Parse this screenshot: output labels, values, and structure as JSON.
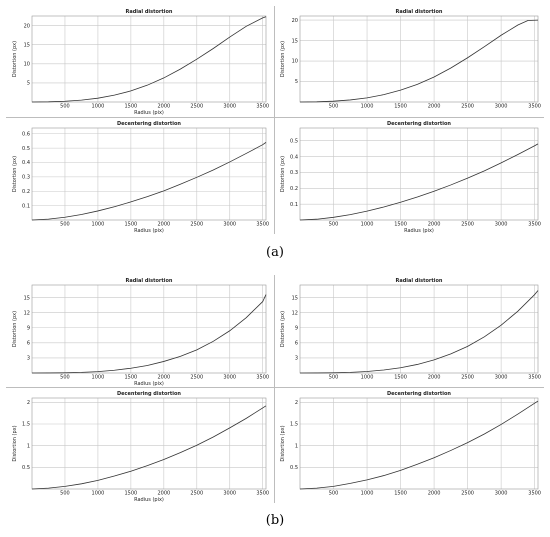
{
  "labels": {
    "a": "(a)",
    "b": "(b)"
  },
  "chart_data": [
    {
      "id": "a-radial-left",
      "type": "line",
      "title": "Radial distortion",
      "xlabel": "Radius (pix)",
      "ylabel": "Distortion (px)",
      "xlim": [
        0,
        3550
      ],
      "ylim": [
        0,
        22.5
      ],
      "xticks": [
        500,
        1000,
        1500,
        2000,
        2500,
        3000,
        3500
      ],
      "yticks": [
        5,
        10,
        15,
        20
      ],
      "grid": true,
      "series": [
        {
          "x": [
            0,
            250,
            500,
            750,
            1000,
            1250,
            1500,
            1750,
            2000,
            2250,
            2500,
            2750,
            3000,
            3250,
            3500,
            3550
          ],
          "y": [
            0,
            0.05,
            0.2,
            0.5,
            1.0,
            1.8,
            2.9,
            4.4,
            6.3,
            8.6,
            11.2,
            14.0,
            17.0,
            19.8,
            22.0,
            22.3
          ]
        }
      ]
    },
    {
      "id": "a-radial-right",
      "type": "line",
      "title": "Radial distortion",
      "xlabel": "",
      "ylabel": "Distortion (px)",
      "xlim": [
        0,
        3550
      ],
      "ylim": [
        0,
        21
      ],
      "xticks": [
        500,
        1000,
        1500,
        2000,
        2500,
        3000,
        3500
      ],
      "yticks": [
        5,
        10,
        15,
        20
      ],
      "grid": true,
      "series": [
        {
          "x": [
            0,
            250,
            500,
            750,
            1000,
            1250,
            1500,
            1750,
            2000,
            2250,
            2500,
            2750,
            3000,
            3250,
            3400,
            3550
          ],
          "y": [
            0,
            0.05,
            0.2,
            0.5,
            1.0,
            1.8,
            2.9,
            4.3,
            6.1,
            8.3,
            10.8,
            13.5,
            16.3,
            18.8,
            19.9,
            20.0
          ]
        }
      ]
    },
    {
      "id": "a-decentering-left",
      "type": "line",
      "title": "Decentering distortion",
      "xlabel": "Radius (pix)",
      "ylabel": "Distortion (px)",
      "xlim": [
        0,
        3550
      ],
      "ylim": [
        0,
        0.64
      ],
      "xticks": [
        500,
        1000,
        1500,
        2000,
        2500,
        3000,
        3500
      ],
      "yticks": [
        0.1,
        0.2,
        0.3,
        0.4,
        0.5,
        0.6
      ],
      "grid": true,
      "series": [
        {
          "x": [
            0,
            250,
            500,
            750,
            1000,
            1250,
            1500,
            1750,
            2000,
            2250,
            2500,
            2750,
            3000,
            3250,
            3500,
            3550
          ],
          "y": [
            0,
            0.006,
            0.019,
            0.038,
            0.063,
            0.092,
            0.126,
            0.163,
            0.203,
            0.249,
            0.297,
            0.348,
            0.404,
            0.463,
            0.524,
            0.54
          ]
        }
      ]
    },
    {
      "id": "a-decentering-right",
      "type": "line",
      "title": "Decentering distortion",
      "xlabel": "Radius (pix)",
      "ylabel": "Distortion (px)",
      "xlim": [
        0,
        3550
      ],
      "ylim": [
        0,
        0.58
      ],
      "xticks": [
        500,
        1000,
        1500,
        2000,
        2500,
        3000,
        3500
      ],
      "yticks": [
        0.1,
        0.2,
        0.3,
        0.4,
        0.5
      ],
      "grid": true,
      "series": [
        {
          "x": [
            0,
            250,
            500,
            750,
            1000,
            1250,
            1500,
            1750,
            2000,
            2250,
            2500,
            2750,
            3000,
            3250,
            3500,
            3550
          ],
          "y": [
            0,
            0.005,
            0.017,
            0.034,
            0.056,
            0.082,
            0.112,
            0.145,
            0.181,
            0.221,
            0.264,
            0.31,
            0.36,
            0.413,
            0.468,
            0.48
          ]
        }
      ]
    },
    {
      "id": "b-radial-left",
      "type": "line",
      "title": "Radial distortion",
      "xlabel": "Radius (pix)",
      "ylabel": "Distortion (px)",
      "xlim": [
        0,
        3550
      ],
      "ylim": [
        0,
        17.5
      ],
      "xticks": [
        500,
        1000,
        1500,
        2000,
        2500,
        3000,
        3500
      ],
      "yticks": [
        3,
        6,
        9,
        12,
        15
      ],
      "grid": true,
      "series": [
        {
          "x": [
            0,
            250,
            500,
            750,
            1000,
            1250,
            1500,
            1750,
            2000,
            2250,
            2500,
            2750,
            3000,
            3250,
            3500,
            3550
          ],
          "y": [
            0,
            0.01,
            0.04,
            0.12,
            0.28,
            0.55,
            0.95,
            1.5,
            2.3,
            3.3,
            4.6,
            6.3,
            8.4,
            11.0,
            14.2,
            15.6
          ]
        }
      ]
    },
    {
      "id": "b-radial-right",
      "type": "line",
      "title": "Radial distortion",
      "xlabel": "",
      "ylabel": "Distortion (px)",
      "xlim": [
        0,
        3550
      ],
      "ylim": [
        0,
        17.5
      ],
      "xticks": [
        500,
        1000,
        1500,
        2000,
        2500,
        3000,
        3500
      ],
      "yticks": [
        3,
        6,
        9,
        12,
        15
      ],
      "grid": true,
      "series": [
        {
          "x": [
            0,
            250,
            500,
            750,
            1000,
            1250,
            1500,
            1750,
            2000,
            2250,
            2500,
            2750,
            3000,
            3250,
            3500,
            3550
          ],
          "y": [
            0,
            0.01,
            0.04,
            0.12,
            0.3,
            0.6,
            1.05,
            1.7,
            2.6,
            3.8,
            5.3,
            7.2,
            9.5,
            12.3,
            15.6,
            16.4
          ]
        }
      ]
    },
    {
      "id": "b-decentering-left",
      "type": "line",
      "title": "Decentering distortion",
      "xlabel": "Radius (pix)",
      "ylabel": "Distortion (px)",
      "xlim": [
        0,
        3550
      ],
      "ylim": [
        0,
        2.1
      ],
      "xticks": [
        500,
        1000,
        1500,
        2000,
        2500,
        3000,
        3500
      ],
      "yticks": [
        0.5,
        1,
        1.5,
        2
      ],
      "grid": true,
      "series": [
        {
          "x": [
            0,
            250,
            500,
            750,
            1000,
            1250,
            1500,
            1750,
            2000,
            2250,
            2500,
            2750,
            3000,
            3250,
            3500,
            3550
          ],
          "y": [
            0,
            0.02,
            0.06,
            0.12,
            0.2,
            0.3,
            0.41,
            0.54,
            0.68,
            0.84,
            1.01,
            1.2,
            1.41,
            1.63,
            1.87,
            1.92
          ]
        }
      ]
    },
    {
      "id": "b-decentering-right",
      "type": "line",
      "title": "Decentering distortion",
      "xlabel": "",
      "ylabel": "Distortion (px)",
      "xlim": [
        0,
        3550
      ],
      "ylim": [
        0,
        2.1
      ],
      "xticks": [
        500,
        1000,
        1500,
        2000,
        2500,
        3000,
        3500
      ],
      "yticks": [
        0.5,
        1,
        1.5,
        2
      ],
      "grid": true,
      "series": [
        {
          "x": [
            0,
            250,
            500,
            750,
            1000,
            1250,
            1500,
            1750,
            2000,
            2250,
            2500,
            2750,
            3000,
            3250,
            3500,
            3550
          ],
          "y": [
            0,
            0.02,
            0.06,
            0.13,
            0.21,
            0.31,
            0.43,
            0.57,
            0.72,
            0.89,
            1.07,
            1.27,
            1.49,
            1.73,
            1.98,
            2.03
          ]
        }
      ]
    }
  ]
}
